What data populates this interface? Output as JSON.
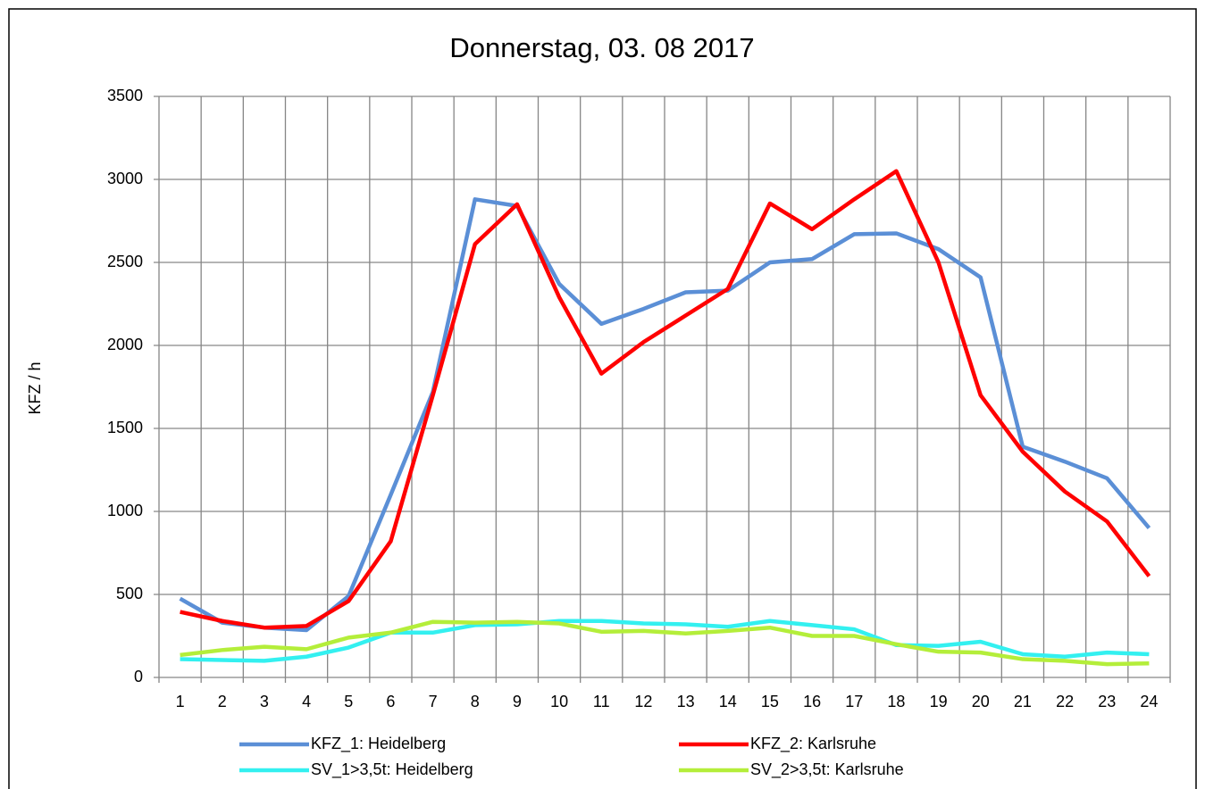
{
  "chart_data": {
    "type": "line",
    "title": "Donnerstag, 03. 08 2017",
    "y_label": "KFZ / h",
    "categories": [
      "1",
      "2",
      "3",
      "4",
      "5",
      "6",
      "7",
      "8",
      "9",
      "10",
      "11",
      "12",
      "13",
      "14",
      "15",
      "16",
      "17",
      "18",
      "19",
      "20",
      "21",
      "22",
      "23",
      "24"
    ],
    "series": [
      {
        "name": "KFZ_1: Heidelberg",
        "color": "#5b8fd6",
        "values": [
          475,
          330,
          300,
          285,
          490,
          1100,
          1720,
          2880,
          2840,
          2370,
          2130,
          2220,
          2320,
          2330,
          2500,
          2520,
          2670,
          2675,
          2580,
          2410,
          1390,
          1300,
          1200,
          900
        ]
      },
      {
        "name": "KFZ_2: Karlsruhe",
        "color": "#ff0000",
        "values": [
          395,
          340,
          300,
          310,
          460,
          820,
          1700,
          2610,
          2850,
          2290,
          1830,
          2020,
          2180,
          2340,
          2855,
          2700,
          2880,
          3050,
          2500,
          1700,
          1360,
          1120,
          940,
          610
        ]
      },
      {
        "name": "SV_1>3,5t: Heidelberg",
        "color": "#33f0f0",
        "values": [
          110,
          105,
          100,
          125,
          180,
          270,
          270,
          315,
          320,
          340,
          340,
          325,
          320,
          305,
          340,
          315,
          290,
          195,
          190,
          215,
          140,
          125,
          150,
          140
        ]
      },
      {
        "name": "SV_2>3,5t: Karlsruhe",
        "color": "#b4ee3a",
        "values": [
          135,
          165,
          185,
          170,
          240,
          270,
          335,
          330,
          335,
          325,
          275,
          280,
          265,
          280,
          300,
          250,
          250,
          200,
          155,
          150,
          110,
          100,
          80,
          85
        ]
      }
    ],
    "ylim": [
      0,
      3500
    ],
    "yticks": [
      0,
      500,
      1000,
      1500,
      2000,
      2500,
      3000,
      3500
    ],
    "grid": true,
    "legend": "bottom"
  }
}
